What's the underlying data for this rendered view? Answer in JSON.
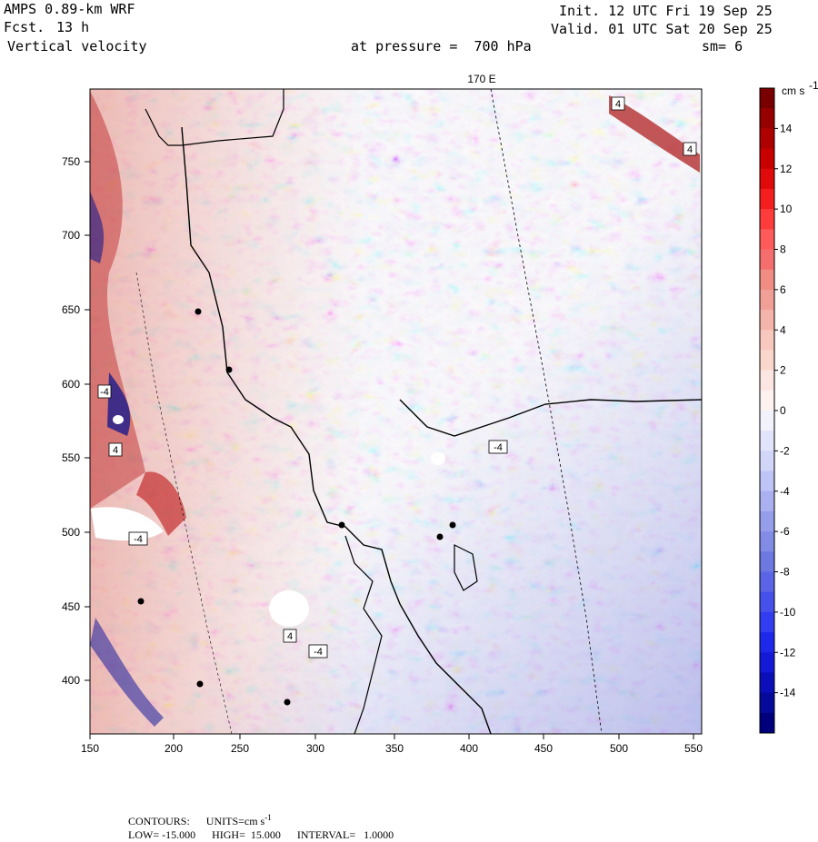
{
  "header": {
    "model": "AMPS 0.89-km WRF",
    "forecast_label": "Fcst.",
    "forecast_value": "13 h",
    "field": "Vertical velocity",
    "pressure_text": "at pressure =  700 hPa",
    "init": "Init. 12 UTC Fri 19 Sep 25",
    "valid": "Valid. 01 UTC Sat 20 Sep 25",
    "smoothing": "sm= 6"
  },
  "map": {
    "meridian_label": "170 E",
    "x_ticks": [
      "150",
      "200",
      "250",
      "300",
      "350",
      "400",
      "450",
      "500",
      "550"
    ],
    "y_ticks": [
      "750",
      "700",
      "650",
      "600",
      "550",
      "500",
      "450",
      "400"
    ],
    "contour_markers": [
      "4",
      "4",
      "4",
      "4",
      "-4",
      "-4",
      "-4",
      "-4"
    ],
    "colors": {
      "strong_up": "#8b0000",
      "up": "#e8a39a",
      "neutral": "#f2f2f8",
      "down": "#a3a8e8",
      "strong_down": "#00008b"
    }
  },
  "colorbar": {
    "unit": "cm s",
    "unit_exp": "-1",
    "labels": [
      "14",
      "12",
      "10",
      "8",
      "6",
      "4",
      "2",
      "0",
      "-2",
      "-4",
      "-6",
      "-8",
      "-10",
      "-12",
      "-14"
    ]
  },
  "footer": {
    "contours": "CONTOURS:",
    "units": "UNITS=cm s",
    "units_exp": "-1",
    "low": "LOW= -15.000",
    "high": "HIGH=  15.000",
    "interval": "INTERVAL=   1.0000"
  }
}
